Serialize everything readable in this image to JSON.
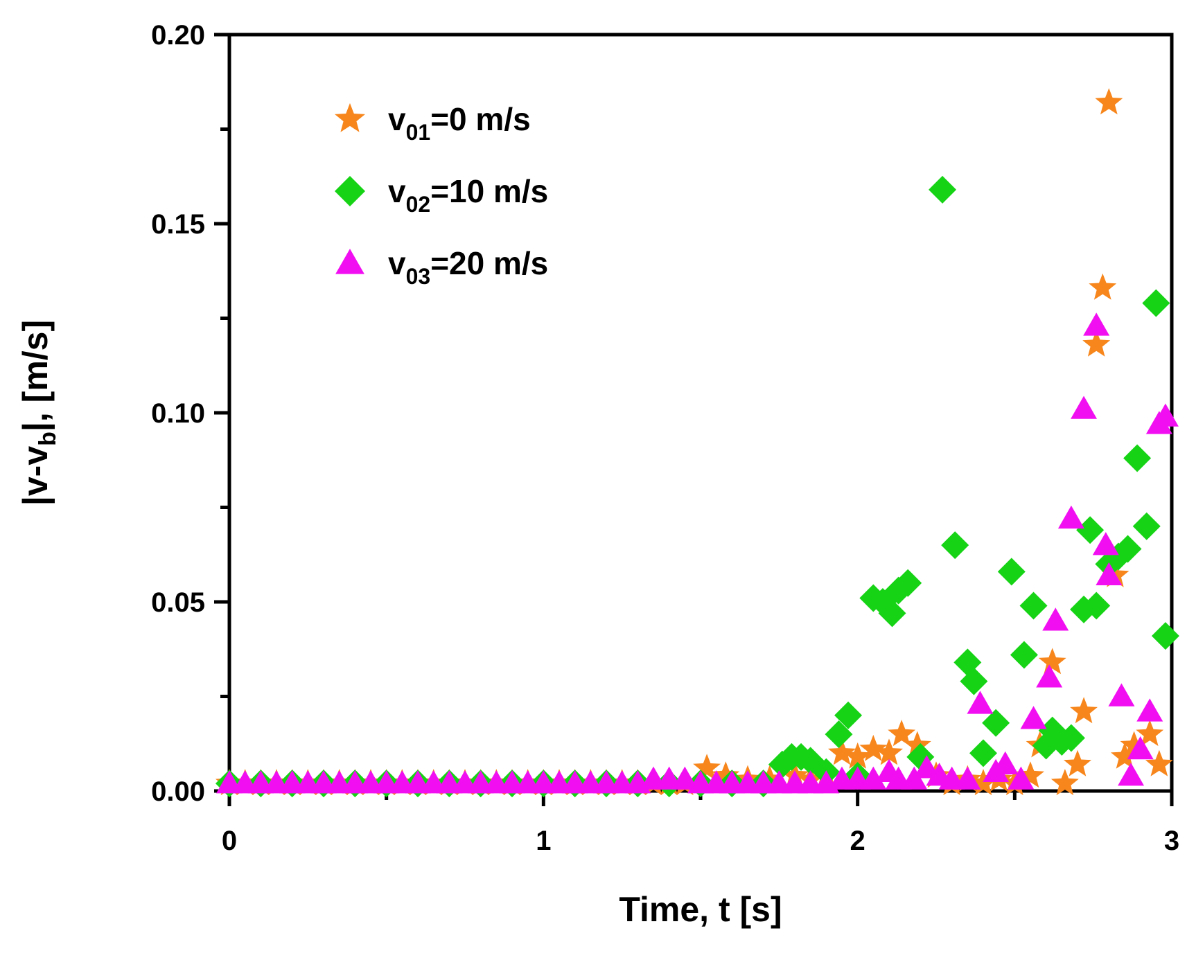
{
  "chart_data": {
    "type": "scatter",
    "title": "",
    "xlabel": "Time, t [s]",
    "ylabel_parts": {
      "main": "|v-v",
      "sub": "b",
      "tail": "|, [m/s]"
    },
    "xlim": [
      0,
      3
    ],
    "ylim": [
      0,
      0.2
    ],
    "x_major_ticks": [
      0,
      1,
      2,
      3
    ],
    "x_major_tick_labels": [
      "0",
      "1",
      "2",
      "3"
    ],
    "x_minor_ticks": [
      0.5,
      1.5,
      2.5
    ],
    "y_major_ticks": [
      0,
      0.05,
      0.1,
      0.15,
      0.2
    ],
    "y_major_tick_labels": [
      "0.00",
      "0.05",
      "0.10",
      "0.15",
      "0.20"
    ],
    "y_minor_ticks": [
      0.025,
      0.075,
      0.125,
      0.175
    ],
    "grid": false,
    "legend_position": "top-left",
    "series": [
      {
        "name": "v01=0 m/s",
        "label_main": "v",
        "label_sub": "01",
        "label_tail": "=0 m/s",
        "marker": "star",
        "color": "#F7861C",
        "points": [
          [
            0.0,
            0.002
          ],
          [
            0.05,
            0.002
          ],
          [
            0.1,
            0.002
          ],
          [
            0.15,
            0.002
          ],
          [
            0.2,
            0.002
          ],
          [
            0.25,
            0.002
          ],
          [
            0.3,
            0.002
          ],
          [
            0.35,
            0.002
          ],
          [
            0.4,
            0.002
          ],
          [
            0.45,
            0.002
          ],
          [
            0.5,
            0.002
          ],
          [
            0.55,
            0.002
          ],
          [
            0.6,
            0.002
          ],
          [
            0.65,
            0.002
          ],
          [
            0.7,
            0.002
          ],
          [
            0.75,
            0.002
          ],
          [
            0.8,
            0.002
          ],
          [
            0.85,
            0.002
          ],
          [
            0.9,
            0.002
          ],
          [
            0.95,
            0.002
          ],
          [
            1.0,
            0.002
          ],
          [
            1.05,
            0.002
          ],
          [
            1.1,
            0.002
          ],
          [
            1.15,
            0.002
          ],
          [
            1.2,
            0.002
          ],
          [
            1.25,
            0.002
          ],
          [
            1.3,
            0.002
          ],
          [
            1.35,
            0.002
          ],
          [
            1.4,
            0.002
          ],
          [
            1.45,
            0.002
          ],
          [
            1.52,
            0.006
          ],
          [
            1.58,
            0.004
          ],
          [
            1.65,
            0.003
          ],
          [
            1.72,
            0.003
          ],
          [
            1.8,
            0.004
          ],
          [
            1.85,
            0.003
          ],
          [
            1.9,
            0.004
          ],
          [
            1.95,
            0.01
          ],
          [
            2.0,
            0.009
          ],
          [
            2.05,
            0.011
          ],
          [
            2.1,
            0.01
          ],
          [
            2.14,
            0.015
          ],
          [
            2.19,
            0.012
          ],
          [
            2.25,
            0.004
          ],
          [
            2.3,
            0.002
          ],
          [
            2.35,
            0.003
          ],
          [
            2.4,
            0.002
          ],
          [
            2.45,
            0.003
          ],
          [
            2.5,
            0.002
          ],
          [
            2.55,
            0.004
          ],
          [
            2.58,
            0.012
          ],
          [
            2.62,
            0.034
          ],
          [
            2.66,
            0.002
          ],
          [
            2.7,
            0.007
          ],
          [
            2.72,
            0.021
          ],
          [
            2.76,
            0.118
          ],
          [
            2.78,
            0.133
          ],
          [
            2.8,
            0.182
          ],
          [
            2.82,
            0.057
          ],
          [
            2.85,
            0.009
          ],
          [
            2.88,
            0.012
          ],
          [
            2.93,
            0.015
          ],
          [
            2.96,
            0.007
          ]
        ]
      },
      {
        "name": "v02=10 m/s",
        "label_main": "v",
        "label_sub": "02",
        "label_tail": "=10 m/s",
        "marker": "diamond",
        "color": "#16D316",
        "points": [
          [
            0.0,
            0.002
          ],
          [
            0.1,
            0.002
          ],
          [
            0.2,
            0.002
          ],
          [
            0.3,
            0.002
          ],
          [
            0.4,
            0.002
          ],
          [
            0.5,
            0.002
          ],
          [
            0.6,
            0.002
          ],
          [
            0.7,
            0.002
          ],
          [
            0.8,
            0.002
          ],
          [
            0.9,
            0.002
          ],
          [
            1.0,
            0.002
          ],
          [
            1.1,
            0.002
          ],
          [
            1.2,
            0.002
          ],
          [
            1.3,
            0.002
          ],
          [
            1.4,
            0.002
          ],
          [
            1.5,
            0.002
          ],
          [
            1.6,
            0.002
          ],
          [
            1.7,
            0.002
          ],
          [
            1.76,
            0.007
          ],
          [
            1.79,
            0.009
          ],
          [
            1.82,
            0.009
          ],
          [
            1.85,
            0.008
          ],
          [
            1.9,
            0.005
          ],
          [
            1.94,
            0.015
          ],
          [
            1.97,
            0.02
          ],
          [
            2.0,
            0.004
          ],
          [
            2.05,
            0.051
          ],
          [
            2.08,
            0.05
          ],
          [
            2.11,
            0.047
          ],
          [
            2.13,
            0.053
          ],
          [
            2.16,
            0.055
          ],
          [
            2.2,
            0.009
          ],
          [
            2.27,
            0.159
          ],
          [
            2.31,
            0.065
          ],
          [
            2.35,
            0.034
          ],
          [
            2.37,
            0.029
          ],
          [
            2.4,
            0.01
          ],
          [
            2.44,
            0.018
          ],
          [
            2.49,
            0.058
          ],
          [
            2.53,
            0.036
          ],
          [
            2.56,
            0.049
          ],
          [
            2.6,
            0.012
          ],
          [
            2.62,
            0.016
          ],
          [
            2.65,
            0.013
          ],
          [
            2.68,
            0.014
          ],
          [
            2.72,
            0.048
          ],
          [
            2.74,
            0.069
          ],
          [
            2.76,
            0.049
          ],
          [
            2.8,
            0.06
          ],
          [
            2.83,
            0.062
          ],
          [
            2.86,
            0.064
          ],
          [
            2.89,
            0.088
          ],
          [
            2.92,
            0.07
          ],
          [
            2.95,
            0.129
          ],
          [
            2.98,
            0.041
          ]
        ]
      },
      {
        "name": "v03=20 m/s",
        "label_main": "v",
        "label_sub": "03",
        "label_tail": "=20 m/s",
        "marker": "triangle",
        "color": "#F10FF1",
        "points": [
          [
            0.0,
            0.002
          ],
          [
            0.05,
            0.002
          ],
          [
            0.1,
            0.002
          ],
          [
            0.15,
            0.002
          ],
          [
            0.2,
            0.002
          ],
          [
            0.25,
            0.002
          ],
          [
            0.3,
            0.002
          ],
          [
            0.35,
            0.002
          ],
          [
            0.4,
            0.002
          ],
          [
            0.45,
            0.002
          ],
          [
            0.5,
            0.002
          ],
          [
            0.55,
            0.002
          ],
          [
            0.6,
            0.002
          ],
          [
            0.65,
            0.002
          ],
          [
            0.7,
            0.002
          ],
          [
            0.75,
            0.002
          ],
          [
            0.8,
            0.002
          ],
          [
            0.85,
            0.002
          ],
          [
            0.9,
            0.002
          ],
          [
            0.95,
            0.002
          ],
          [
            1.0,
            0.002
          ],
          [
            1.05,
            0.002
          ],
          [
            1.1,
            0.002
          ],
          [
            1.15,
            0.002
          ],
          [
            1.2,
            0.002
          ],
          [
            1.25,
            0.002
          ],
          [
            1.3,
            0.002
          ],
          [
            1.35,
            0.003
          ],
          [
            1.4,
            0.003
          ],
          [
            1.45,
            0.003
          ],
          [
            1.5,
            0.002
          ],
          [
            1.55,
            0.002
          ],
          [
            1.6,
            0.002
          ],
          [
            1.65,
            0.002
          ],
          [
            1.7,
            0.002
          ],
          [
            1.75,
            0.002
          ],
          [
            1.8,
            0.002
          ],
          [
            1.85,
            0.002
          ],
          [
            1.9,
            0.002
          ],
          [
            1.95,
            0.003
          ],
          [
            2.0,
            0.003
          ],
          [
            2.05,
            0.003
          ],
          [
            2.1,
            0.005
          ],
          [
            2.13,
            0.003
          ],
          [
            2.18,
            0.003
          ],
          [
            2.22,
            0.006
          ],
          [
            2.26,
            0.004
          ],
          [
            2.3,
            0.003
          ],
          [
            2.35,
            0.003
          ],
          [
            2.39,
            0.023
          ],
          [
            2.44,
            0.005
          ],
          [
            2.47,
            0.007
          ],
          [
            2.52,
            0.003
          ],
          [
            2.56,
            0.019
          ],
          [
            2.61,
            0.03
          ],
          [
            2.63,
            0.045
          ],
          [
            2.68,
            0.072
          ],
          [
            2.72,
            0.101
          ],
          [
            2.76,
            0.123
          ],
          [
            2.79,
            0.065
          ],
          [
            2.8,
            0.057
          ],
          [
            2.84,
            0.025
          ],
          [
            2.87,
            0.004
          ],
          [
            2.9,
            0.011
          ],
          [
            2.93,
            0.021
          ],
          [
            2.96,
            0.097
          ],
          [
            2.98,
            0.099
          ]
        ]
      }
    ]
  }
}
